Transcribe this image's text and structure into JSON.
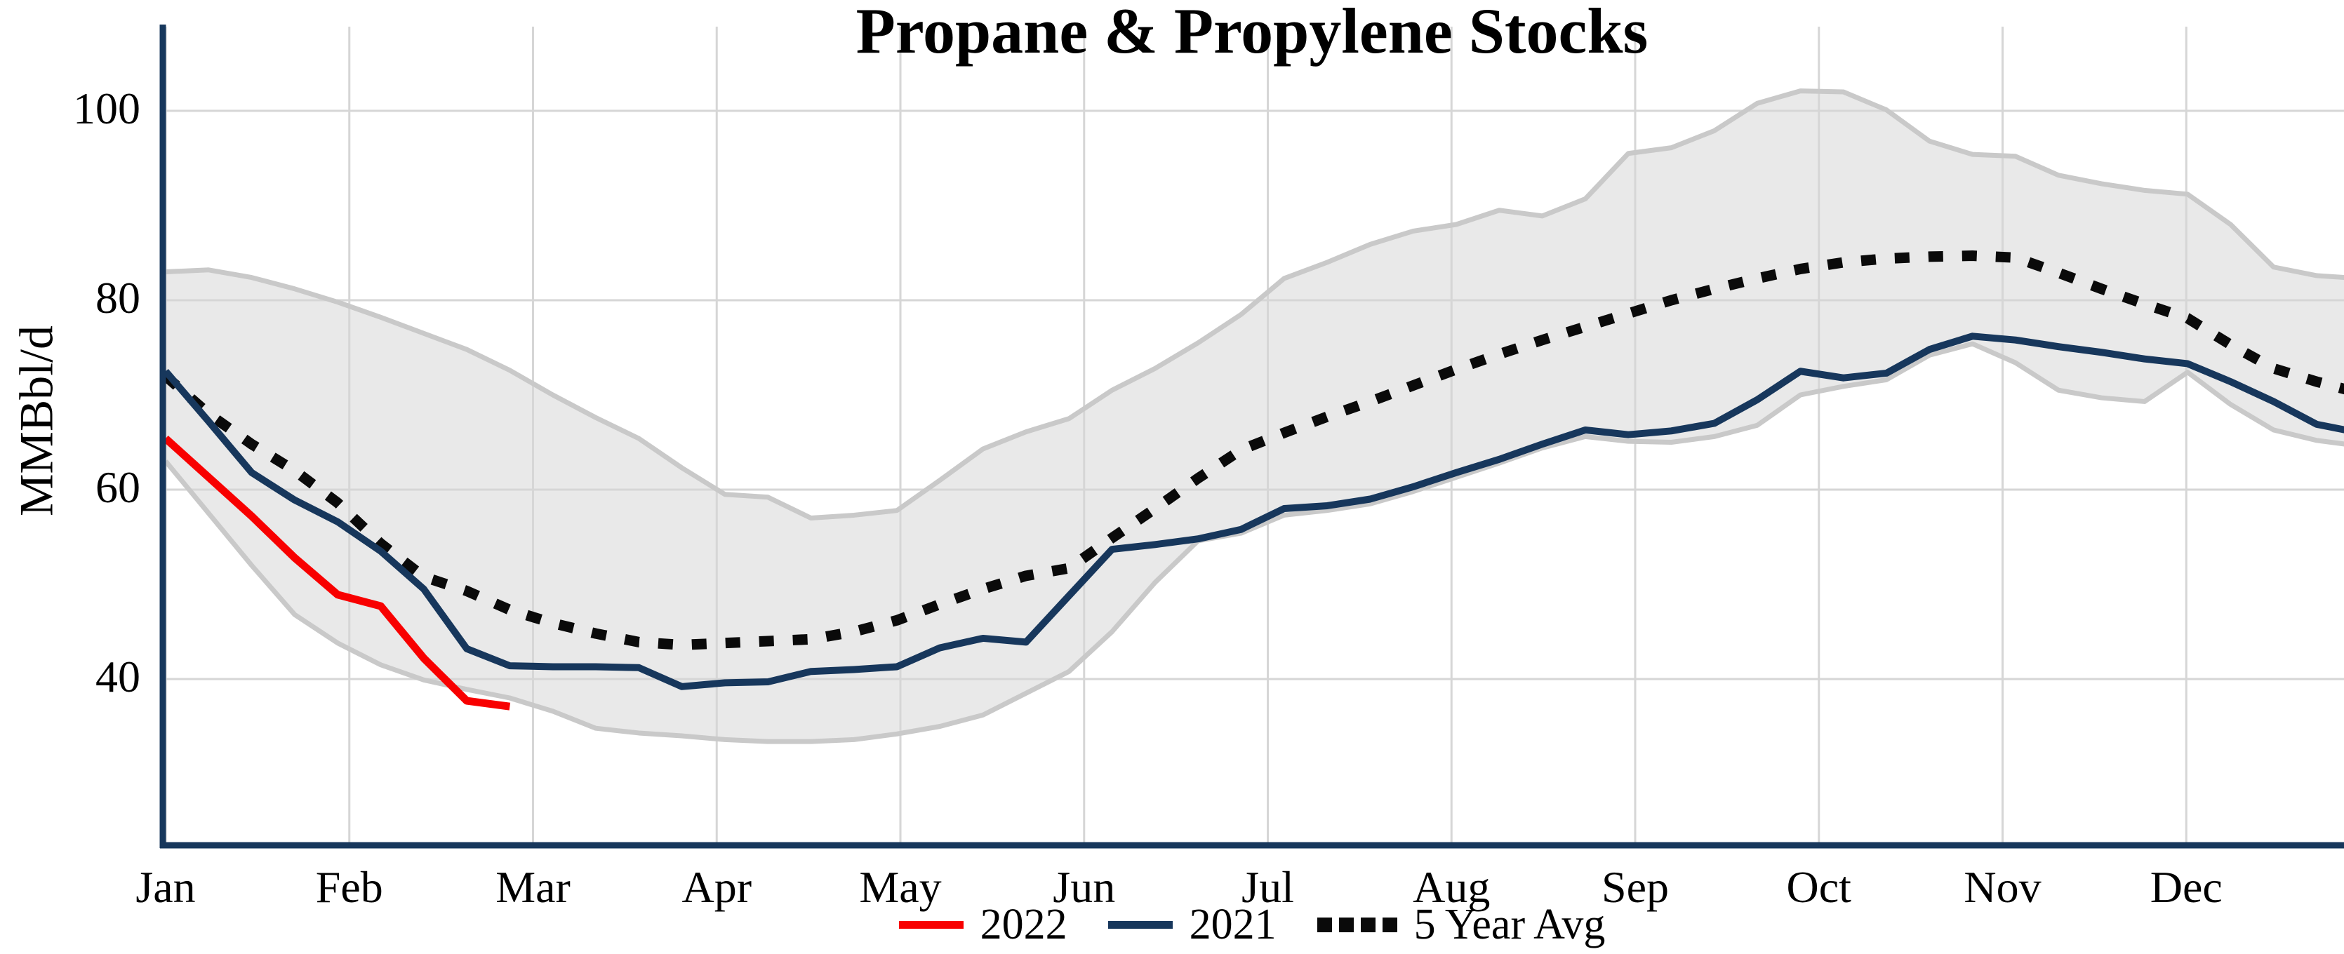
{
  "chart_data": {
    "type": "line",
    "title": "Propane & Propylene Stocks",
    "ylabel": "MMBbl/d",
    "yticks": [
      40,
      60,
      80,
      100
    ],
    "ylim": [
      22.5,
      108.7
    ],
    "x_unit": "week-of-year",
    "xlim_weeks": [
      0.87,
      51.7
    ],
    "grid": true,
    "legend_position": "bottom-center",
    "months": [
      {
        "label": "Jan",
        "week": 1.0
      },
      {
        "label": "Feb",
        "week": 5.27
      },
      {
        "label": "Mar",
        "week": 9.54
      },
      {
        "label": "Apr",
        "week": 13.81
      },
      {
        "label": "May",
        "week": 18.08
      },
      {
        "label": "Jun",
        "week": 22.35
      },
      {
        "label": "Jul",
        "week": 26.62
      },
      {
        "label": "Aug",
        "week": 30.89
      },
      {
        "label": "Sep",
        "week": 35.16
      },
      {
        "label": "Oct",
        "week": 39.43
      },
      {
        "label": "Nov",
        "week": 43.7
      },
      {
        "label": "Dec",
        "week": 47.97
      }
    ],
    "band": {
      "name": "5-year range",
      "fill": "#e9e9e9",
      "edge": "#c9c9c9",
      "start_week": 1,
      "upper": [
        83.0,
        83.2,
        82.4,
        81.2,
        79.8,
        78.2,
        76.5,
        74.8,
        72.6,
        70.0,
        67.6,
        65.4,
        62.3,
        59.5,
        59.2,
        57.0,
        57.3,
        57.8,
        61.0,
        64.3,
        66.1,
        67.5,
        70.5,
        72.8,
        75.5,
        78.5,
        82.3,
        84.0,
        85.9,
        87.3,
        88.0,
        89.5,
        88.9,
        90.7,
        95.5,
        96.1,
        97.9,
        100.8,
        102.1,
        102.0,
        100.1,
        96.8,
        95.4,
        95.2,
        93.2,
        92.3,
        91.6,
        91.2,
        88.0,
        83.5,
        82.6,
        82.3
      ],
      "lower": [
        63.0,
        57.5,
        52.0,
        46.8,
        43.8,
        41.5,
        39.9,
        38.9,
        38.0,
        36.6,
        34.8,
        34.3,
        34.0,
        33.6,
        33.4,
        33.4,
        33.6,
        34.2,
        35.0,
        36.2,
        38.5,
        40.8,
        45.0,
        50.2,
        54.6,
        55.4,
        57.3,
        57.8,
        58.5,
        59.8,
        61.3,
        62.8,
        64.4,
        65.6,
        65.1,
        65.0,
        65.6,
        66.8,
        70.0,
        70.9,
        71.6,
        74.2,
        75.4,
        73.4,
        70.5,
        69.7,
        69.3,
        72.4,
        69.0,
        66.3,
        65.2,
        64.6
      ]
    },
    "series": [
      {
        "name": "2022",
        "color": "#f80000",
        "style": "solid",
        "width": 11,
        "start_week": 1,
        "values": [
          65.4,
          61.3,
          57.2,
          52.8,
          48.9,
          47.7,
          42.2,
          37.7,
          37.1
        ]
      },
      {
        "name": "2021",
        "color": "#17375c",
        "style": "solid",
        "width": 10,
        "start_week": 1,
        "values": [
          72.5,
          67.2,
          61.8,
          58.9,
          56.6,
          53.5,
          49.5,
          43.2,
          41.4,
          41.3,
          41.3,
          41.2,
          39.2,
          39.6,
          39.7,
          40.8,
          41.0,
          41.3,
          43.3,
          44.3,
          43.9,
          48.8,
          53.7,
          54.2,
          54.8,
          55.8,
          58.0,
          58.3,
          59.0,
          60.3,
          61.8,
          63.2,
          64.8,
          66.3,
          65.8,
          66.2,
          67.0,
          69.5,
          72.5,
          71.8,
          72.3,
          74.8,
          76.2,
          75.8,
          75.1,
          74.5,
          73.8,
          73.3,
          71.4,
          69.3,
          66.9,
          66.0
        ]
      },
      {
        "name": "5 Year Avg",
        "color": "#0a0a0a",
        "style": "dotted",
        "width": 15,
        "start_week": 1,
        "values": [
          72.0,
          68.0,
          64.8,
          62.0,
          58.6,
          54.3,
          50.8,
          49.3,
          47.3,
          45.9,
          44.8,
          43.9,
          43.6,
          43.8,
          44.0,
          44.2,
          45.0,
          46.2,
          47.9,
          49.5,
          50.9,
          51.7,
          54.9,
          58.0,
          61.2,
          64.2,
          66.0,
          67.7,
          69.3,
          71.0,
          72.7,
          74.3,
          75.8,
          77.2,
          78.6,
          80.0,
          81.2,
          82.3,
          83.3,
          84.0,
          84.4,
          84.6,
          84.7,
          84.5,
          82.9,
          81.2,
          79.6,
          78.1,
          75.3,
          72.8,
          71.4,
          70.2
        ]
      }
    ]
  },
  "legend": {
    "items": [
      {
        "label": "2022",
        "swatch": "line",
        "color": "#f80000"
      },
      {
        "label": "2021",
        "swatch": "line",
        "color": "#17375c"
      },
      {
        "label": "5 Year Avg",
        "swatch": "dotted",
        "color": "#0a0a0a"
      }
    ]
  },
  "colors": {
    "axis": "#17375c",
    "gridline": "#d6d6d6",
    "text": "#000000",
    "background": "#ffffff"
  }
}
